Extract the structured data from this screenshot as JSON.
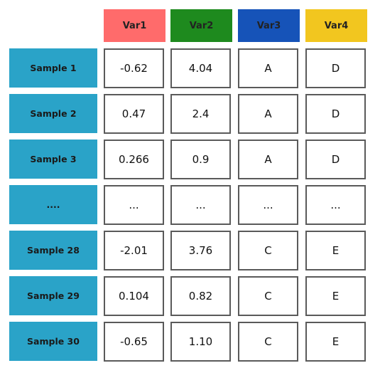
{
  "columns": [
    {
      "label": "Var1",
      "color": "#ff6b6b"
    },
    {
      "label": "Var2",
      "color": "#1e8a1e"
    },
    {
      "label": "Var3",
      "color": "#1653b8"
    },
    {
      "label": "Var4",
      "color": "#f2c61f"
    }
  ],
  "row_label_color": "#2aa3c8",
  "rows": [
    {
      "label": "Sample 1",
      "cells": [
        "-0.62",
        "4.04",
        "A",
        "D"
      ]
    },
    {
      "label": "Sample 2",
      "cells": [
        "0.47",
        "2.4",
        "A",
        "D"
      ]
    },
    {
      "label": "Sample 3",
      "cells": [
        "0.266",
        "0.9",
        "A",
        "D"
      ]
    },
    {
      "label": "....",
      "cells": [
        "...",
        "...",
        "...",
        "..."
      ]
    },
    {
      "label": "Sample 28",
      "cells": [
        "-2.01",
        "3.76",
        "C",
        "E"
      ]
    },
    {
      "label": "Sample 29",
      "cells": [
        "0.104",
        "0.82",
        "C",
        "E"
      ]
    },
    {
      "label": "Sample 30",
      "cells": [
        "-0.65",
        "1.10",
        "C",
        "E"
      ]
    }
  ]
}
